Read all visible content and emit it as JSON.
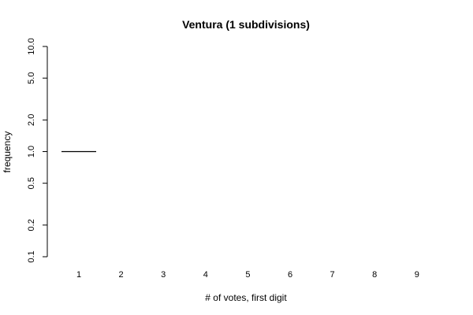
{
  "chart_data": {
    "type": "bar",
    "title": "Ventura (1 subdivisions)",
    "xlabel": "# of votes, first digit",
    "ylabel": "frequency",
    "y_scale": "log",
    "ylim": [
      0.1,
      10.0
    ],
    "y_ticks": [
      {
        "value": 0.1,
        "label": "0.1"
      },
      {
        "value": 0.2,
        "label": "0.2"
      },
      {
        "value": 0.5,
        "label": "0.5"
      },
      {
        "value": 1.0,
        "label": "1.0"
      },
      {
        "value": 2.0,
        "label": "2.0"
      },
      {
        "value": 5.0,
        "label": "5.0"
      },
      {
        "value": 10.0,
        "label": "10.0"
      }
    ],
    "categories": [
      "1",
      "2",
      "3",
      "4",
      "5",
      "6",
      "7",
      "8",
      "9"
    ],
    "values": [
      1,
      0,
      0,
      0,
      0,
      0,
      0,
      0,
      0
    ],
    "grid": false,
    "legend": "none",
    "line_color": "#000000"
  }
}
